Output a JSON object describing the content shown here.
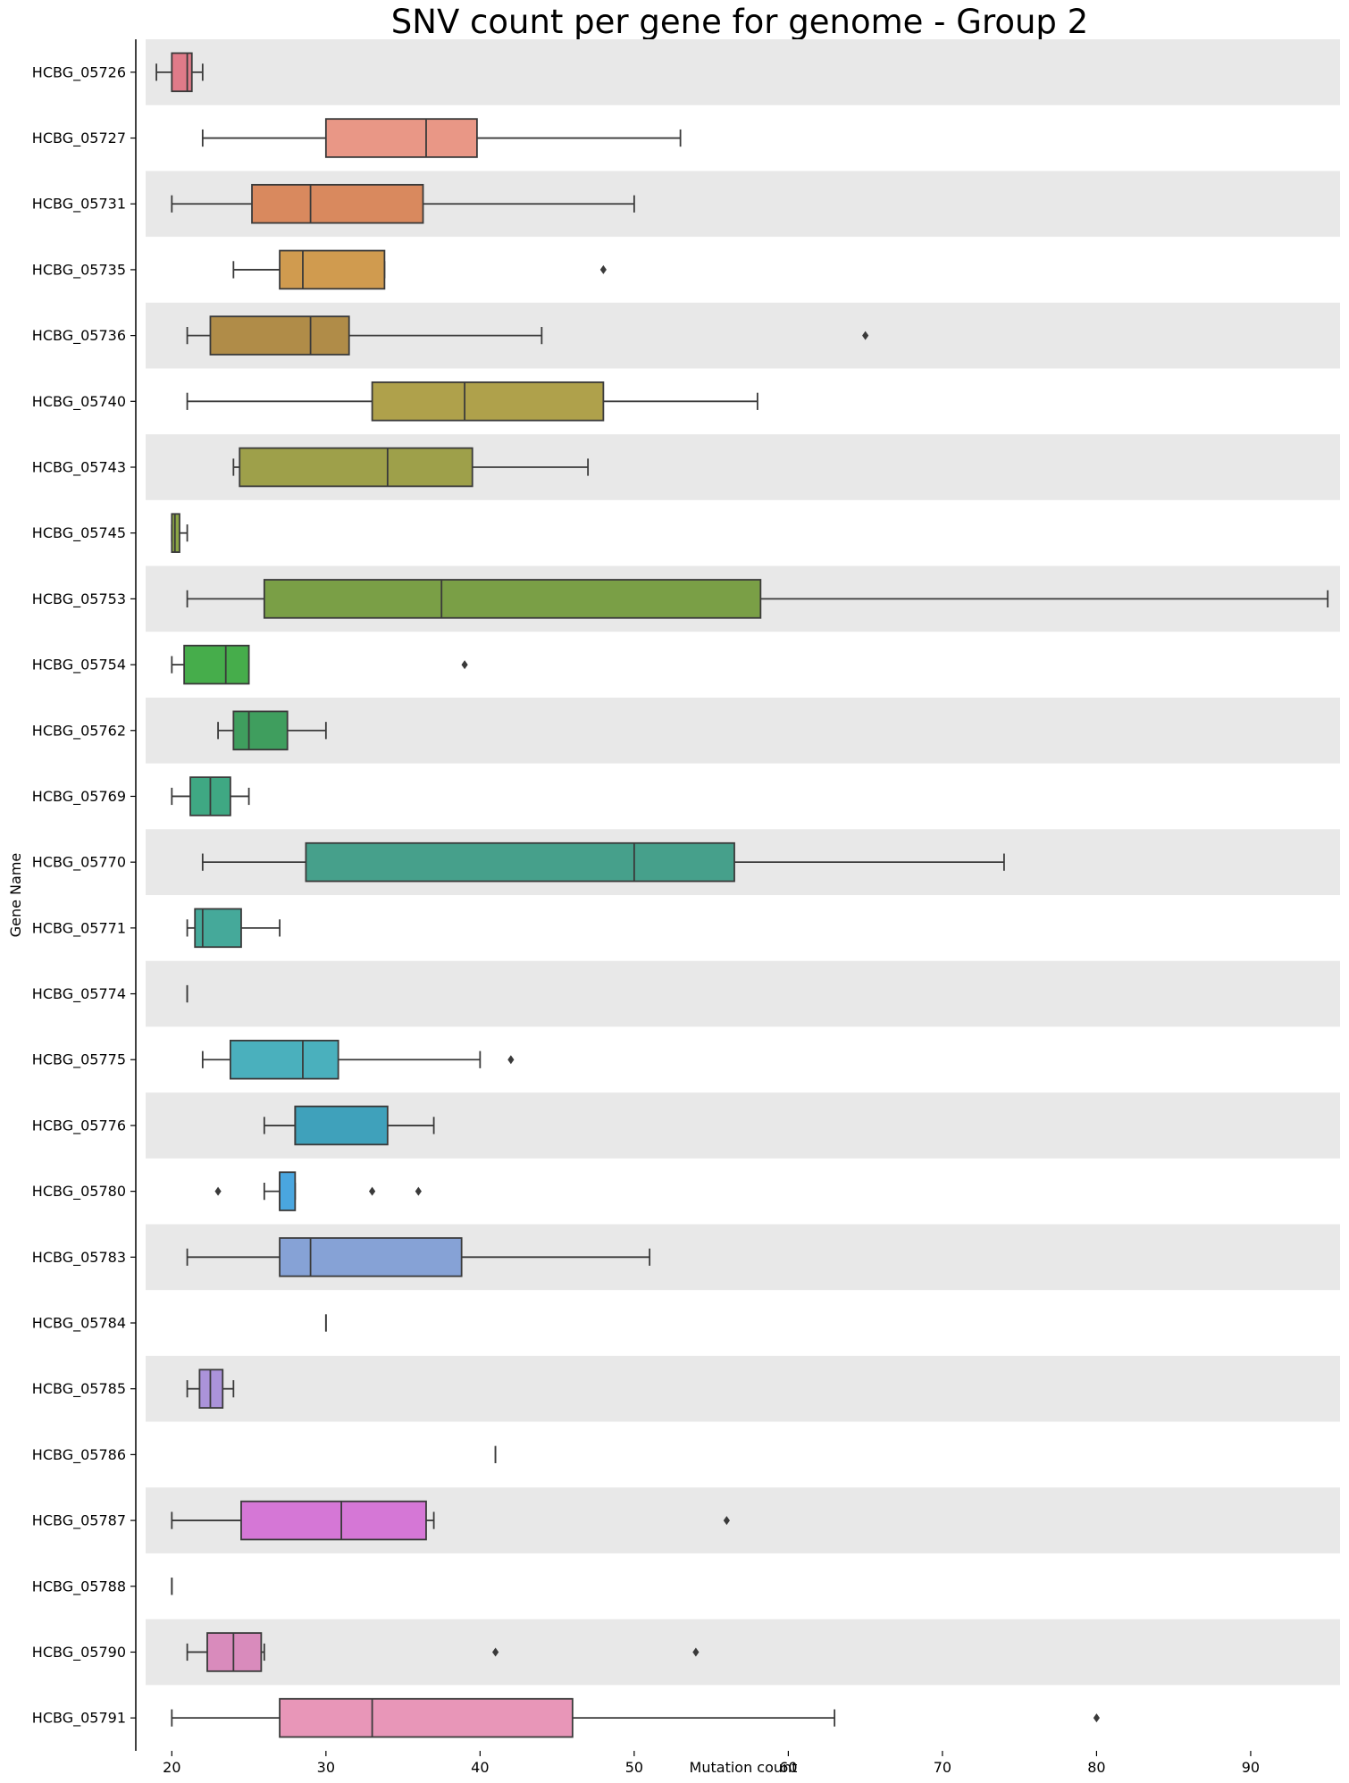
{
  "chart_data": {
    "type": "box",
    "orientation": "horizontal",
    "title": "SNV count per gene for genome - Group 2",
    "xlabel": "Mutation count",
    "ylabel": "Gene Name",
    "xlim": [
      18.3,
      95.8
    ],
    "xticks": [
      20,
      30,
      40,
      50,
      60,
      70,
      80,
      90
    ],
    "xtick_labels": [
      "20",
      "30",
      "40",
      "50",
      "60",
      "70",
      "80",
      "90"
    ],
    "row_shading": "alternating light gray",
    "categories": [
      "HCBG_05726",
      "HCBG_05727",
      "HCBG_05731",
      "HCBG_05735",
      "HCBG_05736",
      "HCBG_05740",
      "HCBG_05743",
      "HCBG_05745",
      "HCBG_05753",
      "HCBG_05754",
      "HCBG_05762",
      "HCBG_05769",
      "HCBG_05770",
      "HCBG_05771",
      "HCBG_05774",
      "HCBG_05775",
      "HCBG_05776",
      "HCBG_05780",
      "HCBG_05783",
      "HCBG_05784",
      "HCBG_05785",
      "HCBG_05786",
      "HCBG_05787",
      "HCBG_05788",
      "HCBG_05790",
      "HCBG_05791"
    ],
    "boxes": [
      {
        "gene": "HCBG_05726",
        "whislo": 19,
        "q1": 20,
        "med": 21,
        "q3": 21.3,
        "whishi": 22,
        "fliers": [],
        "color": "#e07b89"
      },
      {
        "gene": "HCBG_05727",
        "whislo": 22,
        "q1": 30,
        "med": 36.5,
        "q3": 39.8,
        "whishi": 53,
        "fliers": [],
        "color": "#e99786"
      },
      {
        "gene": "HCBG_05731",
        "whislo": 20,
        "q1": 25.2,
        "med": 29,
        "q3": 36.3,
        "whishi": 50,
        "fliers": [],
        "color": "#d9895e"
      },
      {
        "gene": "HCBG_05735",
        "whislo": 24,
        "q1": 27,
        "med": 28.5,
        "q3": 33.8,
        "whishi": 33.8,
        "fliers": [
          48
        ],
        "color": "#d09b4f"
      },
      {
        "gene": "HCBG_05736",
        "whislo": 21,
        "q1": 22.5,
        "med": 29,
        "q3": 31.5,
        "whishi": 44,
        "fliers": [
          65
        ],
        "color": "#b08c48"
      },
      {
        "gene": "HCBG_05740",
        "whislo": 21,
        "q1": 33,
        "med": 39,
        "q3": 48,
        "whishi": 58,
        "fliers": [],
        "color": "#afa14b"
      },
      {
        "gene": "HCBG_05743",
        "whislo": 24,
        "q1": 24.4,
        "med": 34,
        "q3": 39.5,
        "whishi": 47,
        "fliers": [],
        "color": "#9ea04a"
      },
      {
        "gene": "HCBG_05745",
        "whislo": 20,
        "q1": 20,
        "med": 20.2,
        "q3": 20.5,
        "whishi": 21,
        "fliers": [],
        "color": "#8ca646"
      },
      {
        "gene": "HCBG_05753",
        "whislo": 21,
        "q1": 26,
        "med": 37.5,
        "q3": 58.2,
        "whishi": 95,
        "fliers": [],
        "color": "#7a9f46"
      },
      {
        "gene": "HCBG_05754",
        "whislo": 20,
        "q1": 20.8,
        "med": 23.5,
        "q3": 25,
        "whishi": 25,
        "fliers": [
          39
        ],
        "color": "#46ad4b"
      },
      {
        "gene": "HCBG_05762",
        "whislo": 23,
        "q1": 24,
        "med": 25,
        "q3": 27.5,
        "whishi": 30,
        "fliers": [],
        "color": "#3f9e5e"
      },
      {
        "gene": "HCBG_05769",
        "whislo": 20,
        "q1": 21.2,
        "med": 22.5,
        "q3": 23.8,
        "whishi": 25,
        "fliers": [],
        "color": "#3fa883"
      },
      {
        "gene": "HCBG_05770",
        "whislo": 22,
        "q1": 28.7,
        "med": 50,
        "q3": 56.5,
        "whishi": 74,
        "fliers": [],
        "color": "#46a08b"
      },
      {
        "gene": "HCBG_05771",
        "whislo": 21,
        "q1": 21.5,
        "med": 22,
        "q3": 24.5,
        "whishi": 27,
        "fliers": [],
        "color": "#45a99a"
      },
      {
        "gene": "HCBG_05774",
        "whislo": 21,
        "q1": 21,
        "med": 21,
        "q3": 21,
        "whishi": 21,
        "fliers": [],
        "color": "#45aab0"
      },
      {
        "gene": "HCBG_05775",
        "whislo": 22,
        "q1": 23.8,
        "med": 28.5,
        "q3": 30.8,
        "whishi": 40,
        "fliers": [
          42
        ],
        "color": "#4ab0bd"
      },
      {
        "gene": "HCBG_05776",
        "whislo": 26,
        "q1": 28,
        "med": 28,
        "q3": 34,
        "whishi": 37,
        "fliers": [],
        "color": "#3fa1bb"
      },
      {
        "gene": "HCBG_05780",
        "whislo": 26,
        "q1": 27,
        "med": 27,
        "q3": 28,
        "whishi": 28,
        "fliers": [
          23,
          33,
          36
        ],
        "color": "#4aa6df"
      },
      {
        "gene": "HCBG_05783",
        "whislo": 21,
        "q1": 27,
        "med": 29,
        "q3": 38.8,
        "whishi": 51,
        "fliers": [],
        "color": "#86a2d6"
      },
      {
        "gene": "HCBG_05784",
        "whislo": 30,
        "q1": 30,
        "med": 30,
        "q3": 30,
        "whishi": 30,
        "fliers": [],
        "color": "#9da6dc"
      },
      {
        "gene": "HCBG_05785",
        "whislo": 21,
        "q1": 21.8,
        "med": 22.5,
        "q3": 23.3,
        "whishi": 24,
        "fliers": [],
        "color": "#ab93da"
      },
      {
        "gene": "HCBG_05786",
        "whislo": 41,
        "q1": 41,
        "med": 41,
        "q3": 41,
        "whishi": 41,
        "fliers": [],
        "color": "#b48cd6"
      },
      {
        "gene": "HCBG_05787",
        "whislo": 20,
        "q1": 24.5,
        "med": 31,
        "q3": 36.5,
        "whishi": 37,
        "fliers": [
          56
        ],
        "color": "#d577d6"
      },
      {
        "gene": "HCBG_05788",
        "whislo": 20,
        "q1": 20,
        "med": 20,
        "q3": 20,
        "whishi": 20,
        "fliers": [],
        "color": "#dc80c8"
      },
      {
        "gene": "HCBG_05790",
        "whislo": 21,
        "q1": 22.3,
        "med": 24,
        "q3": 25.8,
        "whishi": 26,
        "fliers": [
          41,
          54
        ],
        "color": "#d98bbc"
      },
      {
        "gene": "HCBG_05791",
        "whislo": 20,
        "q1": 27,
        "med": 33,
        "q3": 46,
        "whishi": 63,
        "fliers": [
          80
        ],
        "color": "#e896b8"
      }
    ]
  }
}
